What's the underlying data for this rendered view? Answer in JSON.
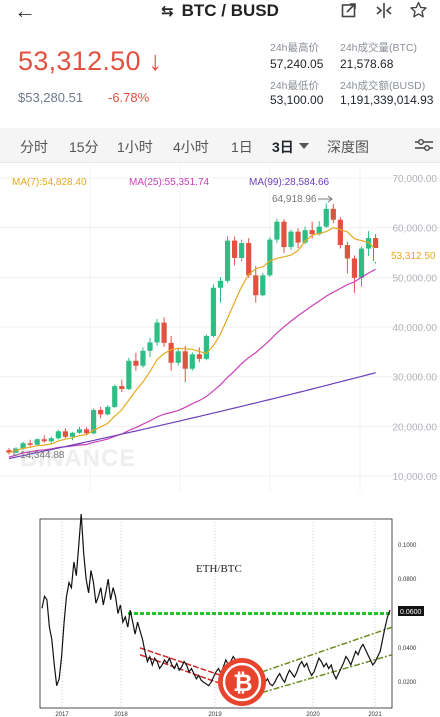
{
  "topbar": {
    "back_icon": "arrow-left-icon",
    "swap_icon": "swap-icon",
    "title": "BTC / BUSD",
    "share_icon": "share-icon",
    "compare_icon": "compare-icon",
    "star_icon": "star-icon"
  },
  "ticker": {
    "last_price": "53,312.50",
    "arrow": "↓",
    "fiat_price": "$53,280.51",
    "change": "-6.78%",
    "stats": [
      {
        "label": "24h最高价",
        "value": "57,240.05"
      },
      {
        "label": "24h成交量(BTC)",
        "value": "21,578.68"
      },
      {
        "label": "24h最低价",
        "value": "53,100.00"
      },
      {
        "label": "24h成交额(BUSD)",
        "value": "1,191,339,014.93"
      }
    ]
  },
  "tabs": [
    {
      "label": "分时"
    },
    {
      "label": "15分"
    },
    {
      "label": "1小时"
    },
    {
      "label": "4小时"
    },
    {
      "label": "1日"
    },
    {
      "label": "3日",
      "active": true
    },
    {
      "label": "深度图"
    }
  ],
  "tabs_dropdown_icon": "caret-down-icon",
  "tabs_settings_icon": "settings-sliders-icon",
  "colors": {
    "up": "#2ebd85",
    "down": "#e15241",
    "ma7": "#e6a91f",
    "ma25": "#c940b8",
    "ma99": "#6c3fb8"
  },
  "chart_data": [
    {
      "type": "candlestick",
      "title": "",
      "indicators": [
        {
          "name": "MA(7)",
          "value": "54,828.40"
        },
        {
          "name": "MA(25)",
          "value": "55,351.74"
        },
        {
          "name": "MA(99)",
          "value": "28,584.66"
        }
      ],
      "y_ticks": [
        "70,000.00",
        "60,000.00",
        "50,000.00",
        "40,000.00",
        "30,000.00",
        "20,000.00",
        "10,000.00"
      ],
      "ylim": [
        10000,
        70000
      ],
      "annotations": {
        "high": "64,918.96",
        "low": "14,344.88",
        "last": "53,312.50"
      },
      "watermark": "BINANCE",
      "candles": [
        [
          15200,
          15600,
          14300,
          14700
        ],
        [
          14700,
          15800,
          14600,
          15500
        ],
        [
          15500,
          16900,
          15300,
          16600
        ],
        [
          16600,
          17300,
          15900,
          16300
        ],
        [
          16300,
          17600,
          16100,
          17400
        ],
        [
          17400,
          18200,
          16700,
          17000
        ],
        [
          17000,
          17900,
          16500,
          17600
        ],
        [
          17600,
          19300,
          17400,
          19000
        ],
        [
          19000,
          19600,
          17600,
          17900
        ],
        [
          17900,
          18900,
          17200,
          18700
        ],
        [
          18700,
          19900,
          18500,
          19400
        ],
        [
          19400,
          19800,
          18200,
          18600
        ],
        [
          18600,
          23600,
          18400,
          23300
        ],
        [
          23300,
          23900,
          21600,
          22400
        ],
        [
          22400,
          24300,
          22200,
          23900
        ],
        [
          23900,
          28400,
          23700,
          28100
        ],
        [
          28100,
          29400,
          26900,
          27500
        ],
        [
          27500,
          33800,
          27300,
          33200
        ],
        [
          33200,
          34800,
          31200,
          32200
        ],
        [
          32200,
          35900,
          31800,
          35200
        ],
        [
          35200,
          37800,
          33900,
          36900
        ],
        [
          36900,
          41600,
          36200,
          40900
        ],
        [
          40900,
          41900,
          36000,
          36800
        ],
        [
          36800,
          38200,
          31200,
          32800
        ],
        [
          32800,
          35800,
          32200,
          35100
        ],
        [
          35100,
          36200,
          28900,
          31600
        ],
        [
          31600,
          34900,
          31200,
          34500
        ],
        [
          34500,
          35900,
          32900,
          33600
        ],
        [
          33600,
          38500,
          33300,
          38200
        ],
        [
          38200,
          48600,
          37900,
          47900
        ],
        [
          47900,
          50100,
          44900,
          49300
        ],
        [
          49300,
          58300,
          48900,
          57400
        ],
        [
          57400,
          58200,
          52400,
          53900
        ],
        [
          53900,
          57600,
          53200,
          56900
        ],
        [
          56900,
          57900,
          49900,
          50400
        ],
        [
          50400,
          52300,
          44900,
          46400
        ],
        [
          46400,
          50900,
          46200,
          50400
        ],
        [
          50400,
          58100,
          50100,
          57600
        ],
        [
          57600,
          61800,
          56900,
          61200
        ],
        [
          61200,
          61700,
          54900,
          56100
        ],
        [
          56100,
          59600,
          55500,
          59200
        ],
        [
          59200,
          59900,
          55900,
          57000
        ],
        [
          57000,
          60200,
          56700,
          59500
        ],
        [
          59500,
          61200,
          57800,
          58700
        ],
        [
          58700,
          61300,
          58400,
          60200
        ],
        [
          60200,
          64900,
          59900,
          63800
        ],
        [
          63800,
          64800,
          60900,
          61600
        ],
        [
          61600,
          62100,
          55800,
          56500
        ],
        [
          56500,
          57100,
          50800,
          53800
        ],
        [
          53800,
          54400,
          46900,
          49900
        ],
        [
          49900,
          56200,
          48100,
          55800
        ],
        [
          55800,
          59300,
          54300,
          57900
        ],
        [
          57900,
          58700,
          52800,
          53312.5
        ]
      ]
    },
    {
      "type": "line",
      "title": "ETH/BTC",
      "x_ticks": [
        "2017",
        "2018",
        "2019",
        "2020",
        "2021"
      ],
      "y_ticks": [
        "0.1000",
        "0.0800",
        "0.0600",
        "0.0400",
        "0.0200"
      ],
      "ylim": [
        0.005,
        0.115
      ],
      "highlight_value": "0.0600",
      "series": [
        {
          "values": [
            0.063,
            0.07,
            0.068,
            0.052,
            0.045,
            0.03,
            0.018,
            0.022,
            0.035,
            0.055,
            0.07,
            0.078,
            0.075,
            0.09,
            0.082,
            0.1,
            0.118,
            0.095,
            0.08,
            0.072,
            0.085,
            0.078,
            0.066,
            0.07,
            0.075,
            0.065,
            0.072,
            0.08,
            0.068,
            0.075,
            0.07,
            0.06,
            0.065,
            0.055,
            0.058,
            0.052,
            0.062,
            0.055,
            0.048,
            0.055,
            0.05,
            0.045,
            0.038,
            0.032,
            0.035,
            0.03,
            0.034,
            0.032,
            0.028,
            0.03,
            0.033,
            0.031,
            0.034,
            0.03,
            0.028,
            0.031,
            0.027,
            0.029,
            0.032,
            0.03,
            0.026,
            0.028,
            0.025,
            0.022,
            0.024,
            0.021,
            0.02,
            0.019,
            0.018,
            0.02,
            0.023,
            0.026,
            0.028,
            0.025,
            0.029,
            0.033,
            0.03,
            0.032,
            0.035,
            0.033,
            0.03,
            0.028,
            0.025,
            0.029,
            0.027,
            0.031,
            0.028,
            0.025,
            0.022,
            0.024,
            0.021,
            0.02,
            0.022,
            0.019,
            0.018,
            0.02,
            0.023,
            0.025,
            0.022,
            0.02,
            0.024,
            0.027,
            0.025,
            0.023,
            0.026,
            0.03,
            0.032,
            0.029,
            0.031,
            0.027,
            0.024,
            0.026,
            0.03,
            0.034,
            0.032,
            0.029,
            0.031,
            0.028,
            0.03,
            0.025,
            0.022,
            0.025,
            0.028,
            0.031,
            0.035,
            0.033,
            0.03,
            0.034,
            0.038,
            0.036,
            0.04,
            0.042,
            0.039,
            0.036,
            0.033,
            0.03,
            0.032,
            0.035,
            0.038,
            0.045,
            0.052,
            0.058,
            0.062
          ]
        }
      ]
    }
  ]
}
